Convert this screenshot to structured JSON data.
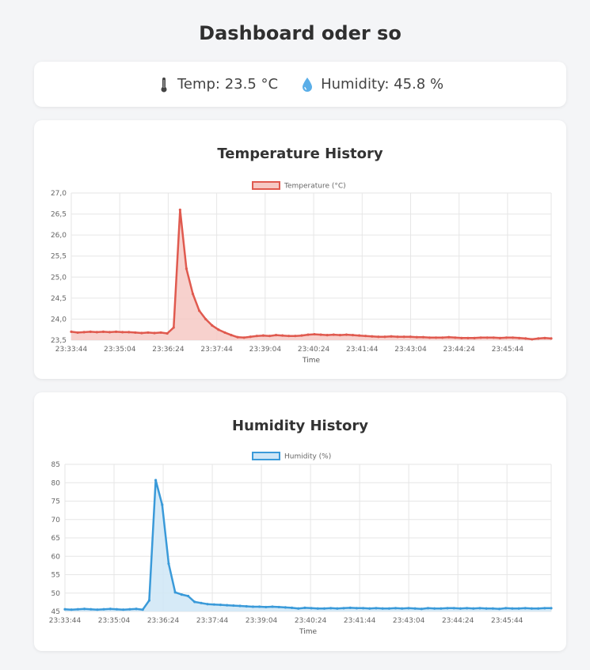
{
  "page": {
    "title": "Dashboard oder so"
  },
  "status": {
    "temp_text": "Temp: 23.5 °C",
    "humidity_text": "Humidity: 45.8 %",
    "temp_icon": "thermometer-icon",
    "humidity_icon": "droplet-icon"
  },
  "colors": {
    "temp": "#e05a4f",
    "temp_fill": "#f6c9c4",
    "humidity": "#3a9ad9",
    "humidity_fill": "#cfe6f6"
  },
  "chart_data": [
    {
      "type": "line",
      "title": "Temperature History",
      "xlabel": "Time",
      "legend": "Temperature (°C)",
      "legend_position": "top",
      "grid": true,
      "ylim": [
        23.5,
        27.0
      ],
      "y_ticks": [
        "27,0",
        "26,5",
        "26,0",
        "25,5",
        "25,0",
        "24,5",
        "24,0",
        "23,5"
      ],
      "x_ticks": [
        "23:33:44",
        "23:35:04",
        "23:36:24",
        "23:37:44",
        "23:39:04",
        "23:40:24",
        "23:41:44",
        "23:43:04",
        "23:44:24",
        "23:45:44"
      ],
      "series": [
        {
          "name": "Temperature (°C)",
          "values": [
            23.7,
            23.68,
            23.69,
            23.7,
            23.69,
            23.7,
            23.69,
            23.7,
            23.69,
            23.69,
            23.68,
            23.67,
            23.68,
            23.67,
            23.68,
            23.66,
            23.8,
            26.6,
            25.2,
            24.6,
            24.2,
            24.0,
            23.85,
            23.75,
            23.68,
            23.62,
            23.57,
            23.56,
            23.58,
            23.6,
            23.61,
            23.6,
            23.62,
            23.61,
            23.6,
            23.6,
            23.61,
            23.63,
            23.64,
            23.63,
            23.62,
            23.63,
            23.62,
            23.63,
            23.62,
            23.61,
            23.6,
            23.59,
            23.58,
            23.58,
            23.59,
            23.58,
            23.58,
            23.58,
            23.57,
            23.57,
            23.56,
            23.56,
            23.56,
            23.57,
            23.56,
            23.55,
            23.55,
            23.55,
            23.56,
            23.56,
            23.56,
            23.55,
            23.56,
            23.56,
            23.55,
            23.54,
            23.52,
            23.54,
            23.55,
            23.54
          ]
        }
      ]
    },
    {
      "type": "line",
      "title": "Humidity History",
      "xlabel": "Time",
      "legend": "Humidity (%)",
      "legend_position": "top",
      "grid": true,
      "ylim": [
        45,
        85
      ],
      "y_ticks": [
        "85",
        "80",
        "75",
        "70",
        "65",
        "60",
        "55",
        "50",
        "45"
      ],
      "x_ticks": [
        "23:33:44",
        "23:35:04",
        "23:36:24",
        "23:37:44",
        "23:39:04",
        "23:40:24",
        "23:41:44",
        "23:43:04",
        "23:44:24",
        "23:45:44"
      ],
      "series": [
        {
          "name": "Humidity (%)",
          "values": [
            45.6,
            45.5,
            45.6,
            45.7,
            45.6,
            45.5,
            45.6,
            45.7,
            45.6,
            45.5,
            45.6,
            45.7,
            45.5,
            48.0,
            80.7,
            74.0,
            58.0,
            50.2,
            49.6,
            49.2,
            47.6,
            47.3,
            47.0,
            46.9,
            46.8,
            46.7,
            46.6,
            46.5,
            46.4,
            46.3,
            46.3,
            46.2,
            46.3,
            46.2,
            46.1,
            46.0,
            45.8,
            46.0,
            45.9,
            45.8,
            45.8,
            45.9,
            45.8,
            45.9,
            46.0,
            45.9,
            45.9,
            45.8,
            45.9,
            45.8,
            45.8,
            45.9,
            45.8,
            45.9,
            45.8,
            45.7,
            45.9,
            45.8,
            45.8,
            45.9,
            45.9,
            45.8,
            45.9,
            45.8,
            45.9,
            45.8,
            45.8,
            45.7,
            45.9,
            45.8,
            45.8,
            45.9,
            45.8,
            45.8,
            45.9,
            45.9
          ]
        }
      ]
    }
  ]
}
